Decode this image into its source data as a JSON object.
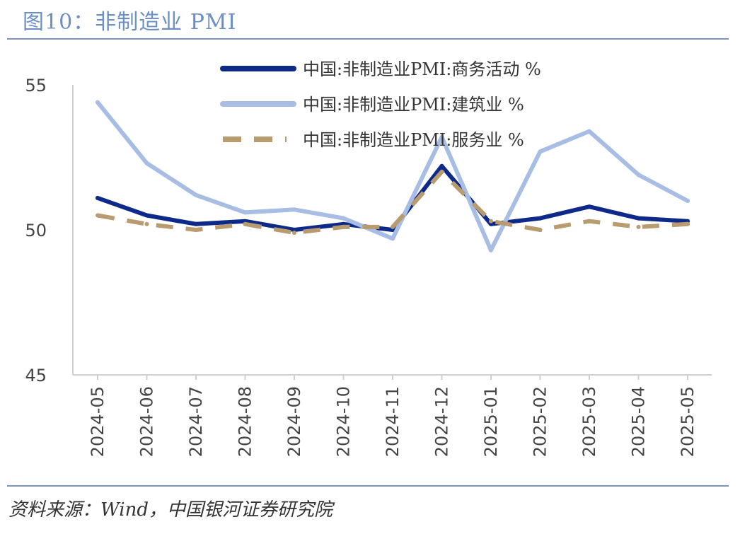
{
  "header": {
    "title": "图10：非制造业 PMI"
  },
  "footer": {
    "source": "资料来源：Wind，中国银河证券研究院"
  },
  "chart_data": {
    "type": "line",
    "title": "图10：非制造业 PMI",
    "xlabel": "",
    "ylabel": "",
    "categories": [
      "2024-05",
      "2024-06",
      "2024-07",
      "2024-08",
      "2024-09",
      "2024-10",
      "2024-11",
      "2024-12",
      "2025-01",
      "2025-02",
      "2025-03",
      "2025-04",
      "2025-05"
    ],
    "ylim": [
      45,
      55
    ],
    "yticks": [
      45,
      50,
      55
    ],
    "grid": false,
    "legend_position": "top-right",
    "series": [
      {
        "name": "中国:非制造业PMI:商务活动 %",
        "color": "#0d2a8a",
        "style": "solid",
        "values": [
          51.1,
          50.5,
          50.2,
          50.3,
          50.0,
          50.2,
          50.0,
          52.2,
          50.2,
          50.4,
          50.8,
          50.4,
          50.3
        ]
      },
      {
        "name": "中国:非制造业PMI:建筑业 %",
        "color": "#a8bde3",
        "style": "solid",
        "values": [
          54.4,
          52.3,
          51.2,
          50.6,
          50.7,
          50.4,
          49.7,
          53.2,
          49.3,
          52.7,
          53.4,
          51.9,
          51.0
        ]
      },
      {
        "name": "中国:非制造业PMI:服务业 %",
        "color": "#b89b6e",
        "style": "dashed",
        "values": [
          50.5,
          50.2,
          50.0,
          50.2,
          49.9,
          50.1,
          50.1,
          52.0,
          50.3,
          50.0,
          50.3,
          50.1,
          50.2
        ]
      }
    ]
  }
}
